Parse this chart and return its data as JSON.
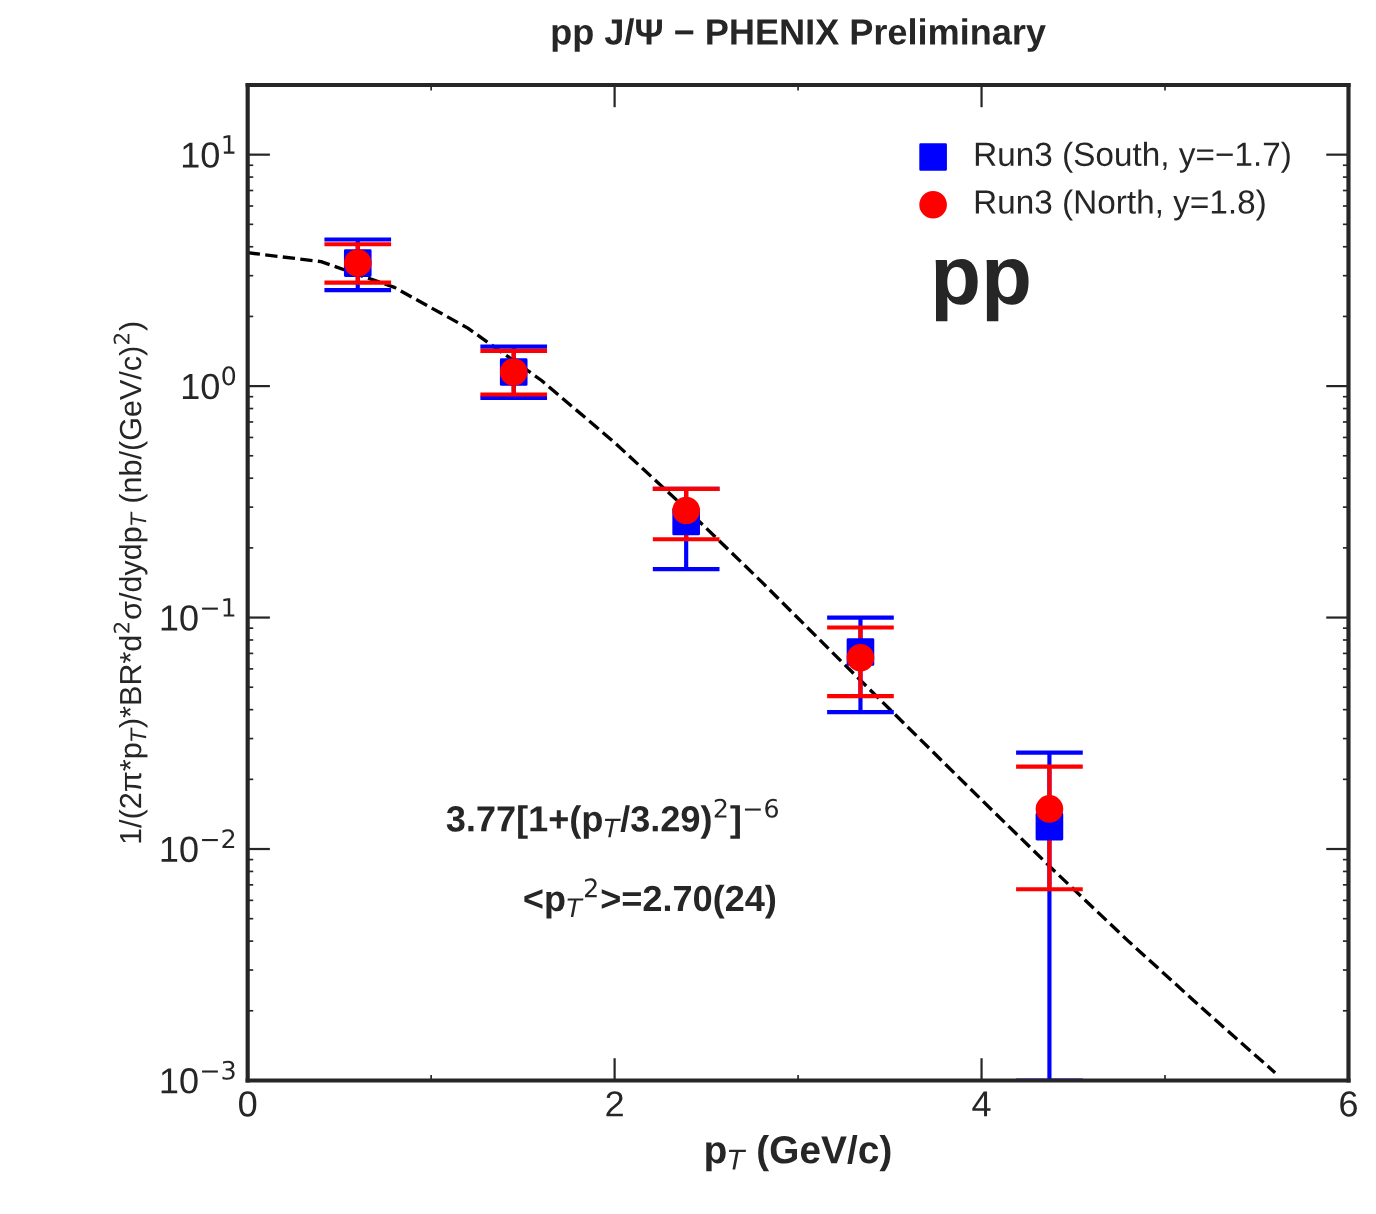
{
  "chart_data": {
    "type": "scatter",
    "title": "pp J/Ψ − PHENIX Preliminary",
    "xlabel": "p$_{T}$ (GeV/c)",
    "ylabel": "1/(2π*p$_{T}$)*BR*d$^{2}$σ/dydp$_{T}$ (nb/(GeV/c)$^{2}$)",
    "log": "y",
    "xlim": [
      0,
      6
    ],
    "ylim": [
      0.001,
      20
    ],
    "xticks": [
      0,
      2,
      4,
      6
    ],
    "yticks": [
      {
        "value": 0.001,
        "label": "10$^{−3}$"
      },
      {
        "value": 0.01,
        "label": "10$^{−2}$"
      },
      {
        "value": 0.1,
        "label": "10$^{−1}$"
      },
      {
        "value": 1,
        "label": "10$^{0}$"
      },
      {
        "value": 10,
        "label": "10$^{1}$"
      }
    ],
    "legend": "top right",
    "grid": false,
    "series": [
      {
        "type": "line",
        "x": [
          0,
          0.4,
          0.8,
          1.2,
          1.6,
          2.0,
          2.4,
          2.8,
          3.2,
          3.6,
          4.0,
          4.4,
          4.8,
          5.2,
          5.6
        ],
        "values": [
          3.77,
          3.45,
          2.67,
          1.78,
          1.06,
          0.57,
          0.29,
          0.143,
          0.069,
          0.0335,
          0.0163,
          0.008,
          0.004,
          0.00206,
          0.00108
        ],
        "color": "#000000",
        "line_style": "dashed",
        "marker": "none"
      },
      {
        "name": "Run3 (South, y=−1.7)",
        "color": "#0000ff",
        "marker": "square",
        "x": [
          0.6,
          1.45,
          2.39,
          3.34,
          4.37
        ],
        "values": [
          3.4,
          1.15,
          0.26,
          0.071,
          0.0125
        ],
        "errors": [
          [
            2.6,
            4.3
          ],
          [
            0.89,
            1.48
          ],
          [
            0.162,
            0.36
          ],
          [
            0.039,
            0.1
          ],
          [
            0.001,
            0.0261
          ]
        ]
      },
      {
        "name": "Run3 (North, y=1.8)",
        "color": "#ff0000",
        "marker": "circle",
        "x": [
          0.6,
          1.45,
          2.39,
          3.34,
          4.37
        ],
        "values": [
          3.4,
          1.15,
          0.29,
          0.067,
          0.0149
        ],
        "errors": [
          [
            2.8,
            4.1
          ],
          [
            0.92,
            1.42
          ],
          [
            0.218,
            0.36
          ],
          [
            0.0458,
            0.0906
          ],
          [
            0.0067,
            0.0227
          ]
        ]
      }
    ],
    "annotations": [
      "pp",
      "3.77[1+(p$_{T}$/3.29)$^{2}$]$^{−6}$",
      "<p$_{T}$$^{2}$>=2.70(24)"
    ]
  }
}
